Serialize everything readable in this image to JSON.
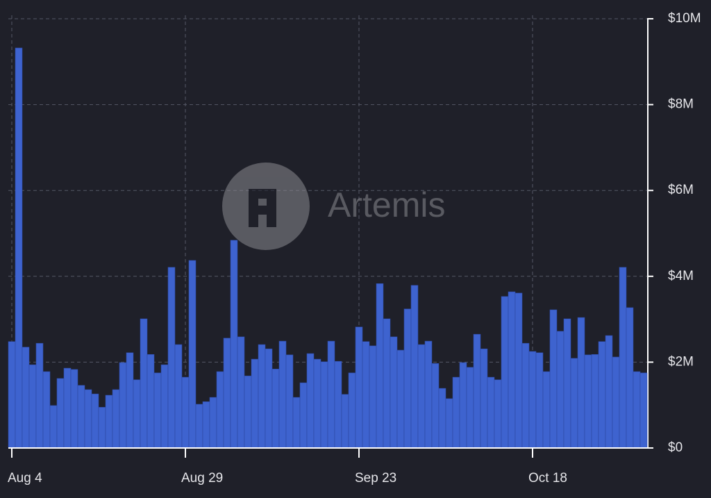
{
  "chart_data": {
    "type": "bar",
    "watermark": "Artemis",
    "color": "#3e63cf",
    "categories": [
      "Aug 4",
      null,
      null,
      null,
      null,
      null,
      null,
      null,
      null,
      null,
      null,
      null,
      null,
      null,
      null,
      null,
      null,
      null,
      null,
      null,
      null,
      null,
      null,
      null,
      null,
      "Aug 29",
      null,
      null,
      null,
      null,
      null,
      null,
      null,
      null,
      null,
      null,
      null,
      null,
      null,
      null,
      null,
      null,
      null,
      null,
      null,
      null,
      null,
      null,
      null,
      null,
      "Sep 23",
      null,
      null,
      null,
      null,
      null,
      null,
      null,
      null,
      null,
      null,
      null,
      null,
      null,
      null,
      null,
      null,
      null,
      null,
      null,
      null,
      null,
      null,
      null,
      null,
      "Oct 18",
      null,
      null,
      null,
      null,
      null,
      null,
      null,
      null,
      null,
      null,
      null,
      null,
      null,
      null,
      null,
      null
    ],
    "values": [
      2.48,
      9.32,
      2.35,
      1.94,
      2.44,
      1.78,
      0.99,
      1.62,
      1.86,
      1.83,
      1.46,
      1.36,
      1.26,
      0.95,
      1.23,
      1.36,
      1.99,
      2.22,
      1.59,
      3.01,
      2.18,
      1.75,
      1.94,
      4.21,
      2.41,
      1.65,
      4.37,
      1.02,
      1.08,
      1.18,
      1.78,
      2.56,
      4.84,
      2.59,
      1.68,
      2.07,
      2.41,
      2.31,
      1.84,
      2.49,
      2.17,
      1.18,
      1.52,
      2.2,
      2.07,
      2.01,
      2.49,
      2.02,
      1.25,
      1.75,
      2.82,
      2.48,
      2.38,
      3.83,
      3.01,
      2.59,
      2.28,
      3.24,
      3.79,
      2.41,
      2.49,
      1.97,
      1.39,
      1.15,
      1.65,
      1.99,
      1.88,
      2.65,
      2.31,
      1.65,
      1.59,
      3.53,
      3.64,
      3.61,
      2.44,
      2.25,
      2.22,
      1.78,
      3.22,
      2.72,
      3.01,
      2.09,
      3.04,
      2.17,
      2.18,
      2.48,
      2.62,
      2.12,
      4.21,
      3.27,
      1.78,
      1.75
    ],
    "ylim": [
      0,
      10
    ],
    "yticks": [
      {
        "value": 0,
        "label": "$0"
      },
      {
        "value": 2,
        "label": "$2M"
      },
      {
        "value": 4,
        "label": "$4M"
      },
      {
        "value": 6,
        "label": "$6M"
      },
      {
        "value": 8,
        "label": "$8M"
      },
      {
        "value": 10,
        "label": "$10M"
      }
    ],
    "grid": true
  }
}
